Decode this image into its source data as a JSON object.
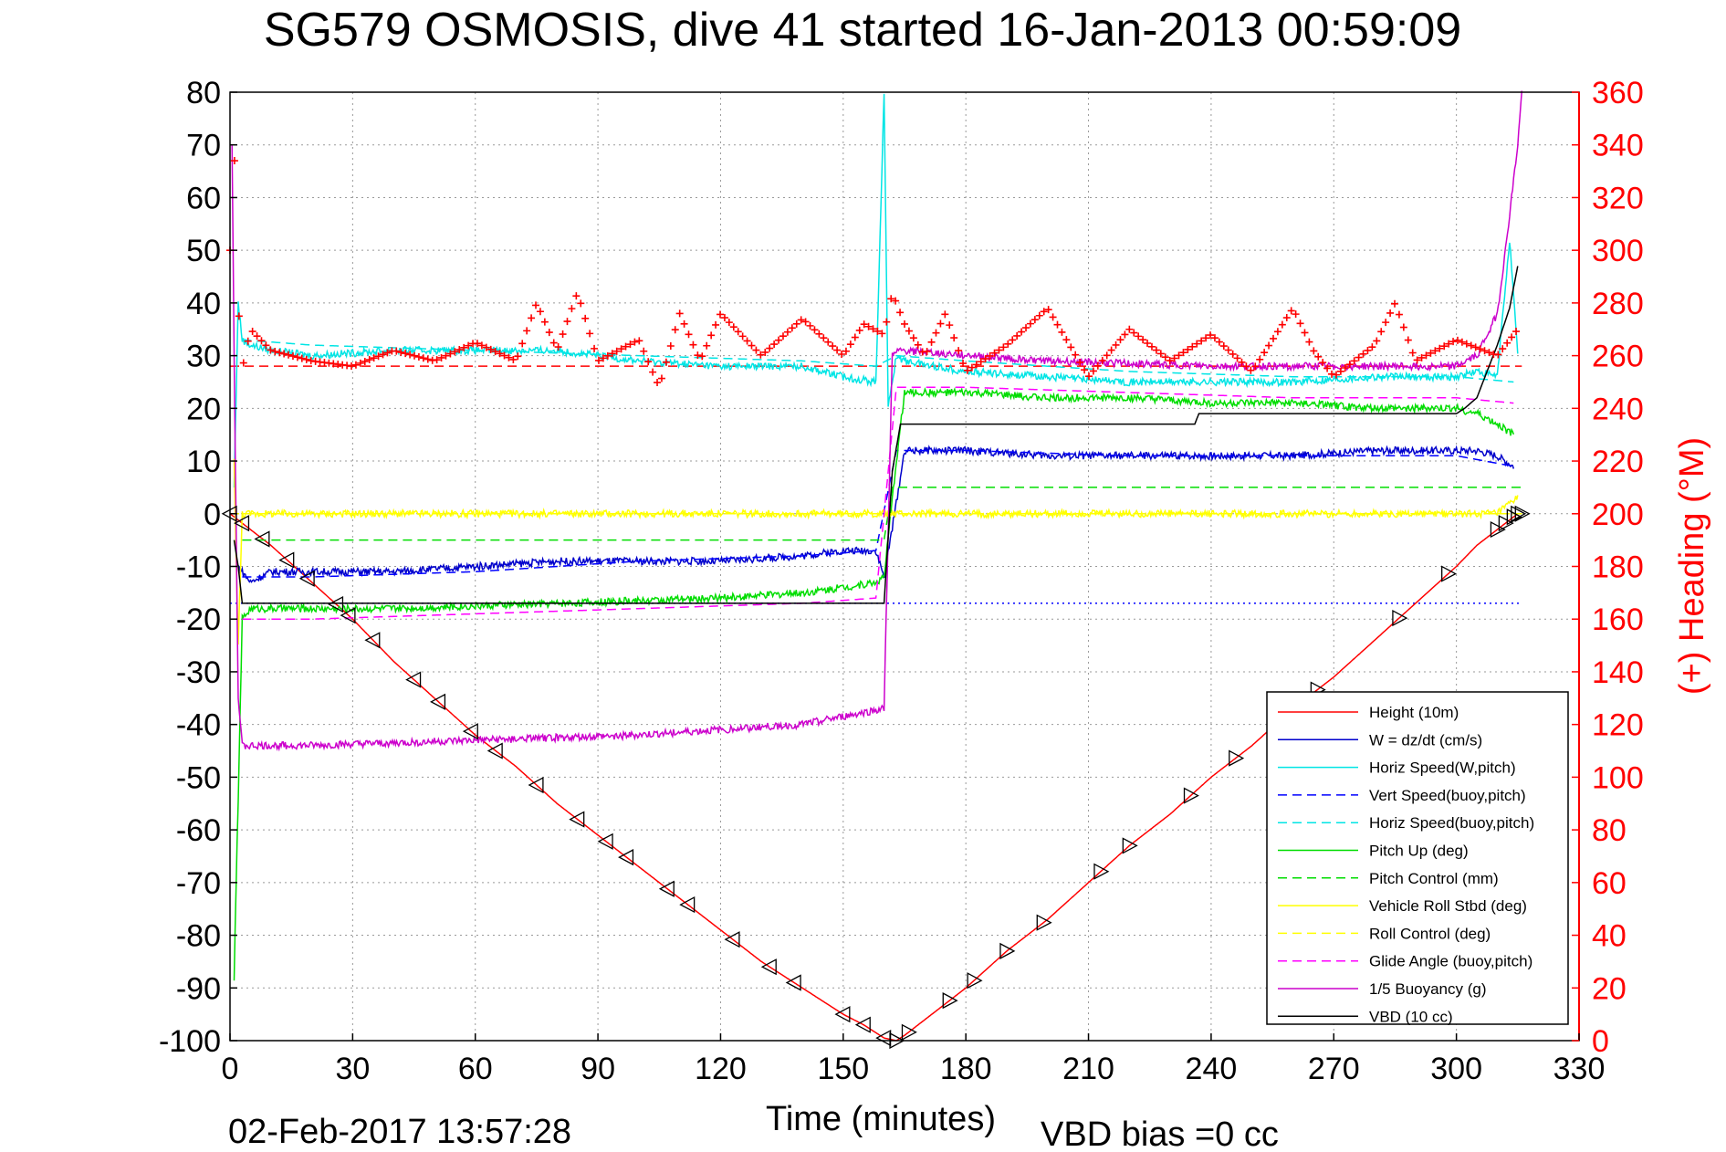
{
  "chart_data": {
    "type": "line",
    "title": "SG579 OSMOSIS, dive 41 started 16-Jan-2013 00:59:09",
    "xlabel": "Time (minutes)",
    "ylabel": "",
    "y2label": "(+) Heading (°M)",
    "xlim": [
      0,
      330
    ],
    "ylim": [
      -100,
      80
    ],
    "y2lim": [
      0,
      360
    ],
    "x_ticks": [
      0,
      30,
      60,
      90,
      120,
      150,
      180,
      210,
      240,
      270,
      300,
      330
    ],
    "y_ticks": [
      80,
      70,
      60,
      50,
      40,
      30,
      20,
      10,
      0,
      -10,
      -20,
      -30,
      -40,
      -50,
      -60,
      -70,
      -80,
      -90,
      -100
    ],
    "y2_ticks": [
      360,
      340,
      320,
      300,
      280,
      260,
      240,
      220,
      200,
      180,
      160,
      140,
      120,
      100,
      80,
      60,
      40,
      20,
      0
    ],
    "grid": true,
    "legend_position": "bottom-right",
    "footer_left": "02-Feb-2017 13:57:28",
    "footer_right": "VBD bias =0 cc",
    "series": [
      {
        "name": "Height (10m)",
        "color": "#ff0000",
        "style": "solid",
        "x": [
          0,
          10,
          20,
          30,
          40,
          50,
          60,
          70,
          80,
          90,
          100,
          110,
          120,
          130,
          140,
          150,
          155,
          160,
          163,
          165,
          170,
          180,
          190,
          200,
          210,
          220,
          230,
          240,
          250,
          260,
          270,
          280,
          290,
          300,
          305,
          310,
          315
        ],
        "values": [
          0,
          -6,
          -13,
          -20,
          -28,
          -35,
          -42,
          -48,
          -55,
          -61,
          -67,
          -73,
          -79,
          -85,
          -90,
          -95,
          -97,
          -99.5,
          -100,
          -99,
          -96,
          -90,
          -83,
          -77,
          -70,
          -63,
          -57,
          -50,
          -44,
          -37,
          -31,
          -24,
          -17,
          -10,
          -6,
          -3,
          0
        ]
      },
      {
        "name": "W = dz/dt (cm/s)",
        "color": "#0000cc",
        "style": "solid",
        "x": [
          2,
          5,
          10,
          20,
          30,
          40,
          60,
          80,
          100,
          120,
          140,
          150,
          158,
          160,
          163,
          165,
          180,
          200,
          220,
          240,
          260,
          280,
          300,
          305,
          310,
          314
        ],
        "values": [
          -10,
          -13,
          -11,
          -11,
          -11,
          -11,
          -10,
          -9,
          -9,
          -9,
          -8,
          -7,
          -7,
          -12,
          2,
          12,
          12,
          11,
          11,
          11,
          11,
          12,
          12,
          12,
          11,
          9
        ]
      },
      {
        "name": "Horiz Speed(W,pitch)",
        "color": "#00e5e5",
        "style": "solid",
        "x": [
          1,
          2,
          3,
          5,
          10,
          20,
          40,
          60,
          80,
          100,
          120,
          140,
          150,
          158,
          160,
          161,
          163,
          165,
          180,
          200,
          220,
          240,
          260,
          280,
          300,
          305,
          310,
          313,
          315
        ],
        "values": [
          5,
          40,
          33,
          32,
          31,
          30,
          31,
          31,
          31,
          29,
          28,
          28,
          26,
          25,
          80,
          20,
          30,
          29,
          27,
          26,
          25,
          25,
          25,
          26,
          26,
          27,
          26,
          52,
          30
        ]
      },
      {
        "name": "Vert Speed(buoy,pitch)",
        "color": "#0000ff",
        "style": "dashed",
        "x": [
          3,
          20,
          60,
          100,
          140,
          158,
          163,
          180,
          220,
          260,
          300,
          314
        ],
        "values": [
          -12,
          -12,
          -11,
          -9,
          -8,
          -7,
          12,
          12,
          11,
          11,
          11,
          9
        ]
      },
      {
        "name": "Horiz Speed(buoy,pitch)",
        "color": "#00e5e5",
        "style": "dashed",
        "x": [
          3,
          20,
          60,
          100,
          140,
          158,
          163,
          180,
          220,
          260,
          300,
          314
        ],
        "values": [
          33,
          32,
          31,
          30,
          29,
          28,
          30,
          29,
          27,
          26,
          26,
          25
        ]
      },
      {
        "name": "Pitch Up (deg)",
        "color": "#00dd00",
        "style": "solid",
        "x": [
          1,
          3,
          5,
          10,
          20,
          40,
          80,
          120,
          140,
          150,
          158,
          160,
          163,
          165,
          180,
          200,
          220,
          240,
          260,
          280,
          300,
          305,
          310,
          314
        ],
        "values": [
          -88,
          -20,
          -18,
          -18,
          -18,
          -18,
          -17,
          -16,
          -15,
          -14,
          -13,
          -12,
          10,
          23,
          23,
          22,
          22,
          21,
          21,
          20,
          20,
          19,
          17,
          15
        ]
      },
      {
        "name": "Pitch Control (mm)",
        "color": "#00dd00",
        "style": "dashed",
        "x": [
          3,
          160,
          162,
          316
        ],
        "values": [
          -5,
          -5,
          5,
          5
        ]
      },
      {
        "name": "Vehicle Roll Stbd (deg)",
        "color": "#ffff00",
        "style": "solid",
        "x": [
          1,
          2,
          3,
          10,
          30,
          60,
          90,
          120,
          150,
          160,
          165,
          180,
          210,
          240,
          270,
          300,
          310,
          315
        ],
        "values": [
          10,
          -25,
          0,
          0,
          0,
          0,
          0,
          0,
          0,
          0,
          0,
          0,
          0,
          0,
          0,
          0,
          0,
          3
        ]
      },
      {
        "name": "Roll Control (deg)",
        "color": "#ffff00",
        "style": "dashed",
        "x": [
          3,
          160,
          162,
          316
        ],
        "values": [
          0,
          0,
          0,
          0
        ]
      },
      {
        "name": "Glide Angle (buoy,pitch)",
        "color": "#ff00ff",
        "style": "dashed",
        "x": [
          3,
          20,
          60,
          100,
          140,
          158,
          163,
          180,
          220,
          260,
          300,
          314
        ],
        "values": [
          -20,
          -20,
          -19,
          -18,
          -17,
          -16,
          24,
          24,
          23,
          22,
          22,
          21
        ]
      },
      {
        "name": "1/5 Buoyancy (g)",
        "color": "#cc00cc",
        "style": "solid",
        "x": [
          0.5,
          1,
          2,
          3,
          5,
          20,
          60,
          100,
          140,
          160,
          162,
          164,
          200,
          240,
          280,
          300,
          305,
          310,
          312,
          315,
          316
        ],
        "values": [
          70,
          30,
          -35,
          -44,
          -44,
          -44,
          -43,
          -42,
          -40,
          -37,
          30,
          31,
          29,
          28,
          28,
          28,
          30,
          38,
          50,
          70,
          80
        ]
      },
      {
        "name": "VBD (10 cc)",
        "color": "#000000",
        "style": "solid",
        "x": [
          1,
          2,
          3,
          160,
          162,
          164,
          180,
          236,
          237,
          300,
          302,
          305,
          310,
          313,
          315
        ],
        "values": [
          -5,
          -10,
          -17,
          -17,
          8,
          17,
          17,
          17,
          19,
          19,
          20,
          22,
          32,
          39,
          47
        ]
      }
    ],
    "heading_series": {
      "name": "(+) Heading",
      "color": "#ff0000",
      "marker": "+",
      "axis": "right",
      "x": [
        0,
        1,
        2,
        3,
        5,
        10,
        20,
        30,
        40,
        50,
        60,
        70,
        75,
        80,
        85,
        90,
        100,
        105,
        110,
        115,
        120,
        130,
        140,
        150,
        155,
        160,
        162,
        165,
        170,
        175,
        180,
        190,
        200,
        210,
        220,
        230,
        240,
        250,
        260,
        265,
        270,
        280,
        285,
        290,
        300,
        310,
        315
      ],
      "values": [
        300,
        340,
        280,
        255,
        270,
        262,
        258,
        256,
        262,
        258,
        265,
        258,
        280,
        262,
        284,
        258,
        266,
        248,
        276,
        258,
        276,
        260,
        274,
        260,
        272,
        268,
        284,
        272,
        260,
        276,
        254,
        264,
        278,
        252,
        270,
        258,
        268,
        254,
        278,
        262,
        252,
        264,
        280,
        258,
        266,
        260,
        270
      ]
    },
    "reference_lines": [
      {
        "axis": "left",
        "value": 28,
        "color": "#ff0000",
        "style": "dashed"
      },
      {
        "axis": "left",
        "value": -17,
        "color": "#0000ff",
        "style": "dotted"
      },
      {
        "axis": "left",
        "value": 0,
        "color": "#ffff00",
        "style": "dashed"
      }
    ],
    "markers": {
      "symbol": "triangle",
      "color": "#000000",
      "on_series": "Height (10m)",
      "x": [
        0,
        3,
        8,
        14,
        19,
        26,
        29,
        35,
        45,
        51,
        59,
        65,
        75,
        85,
        92,
        97,
        107,
        112,
        123,
        132,
        138,
        150,
        155,
        160,
        163,
        166,
        176,
        182,
        190,
        199,
        213,
        220,
        235,
        246,
        266,
        286,
        298,
        310,
        312,
        314,
        315,
        316
      ]
    }
  }
}
